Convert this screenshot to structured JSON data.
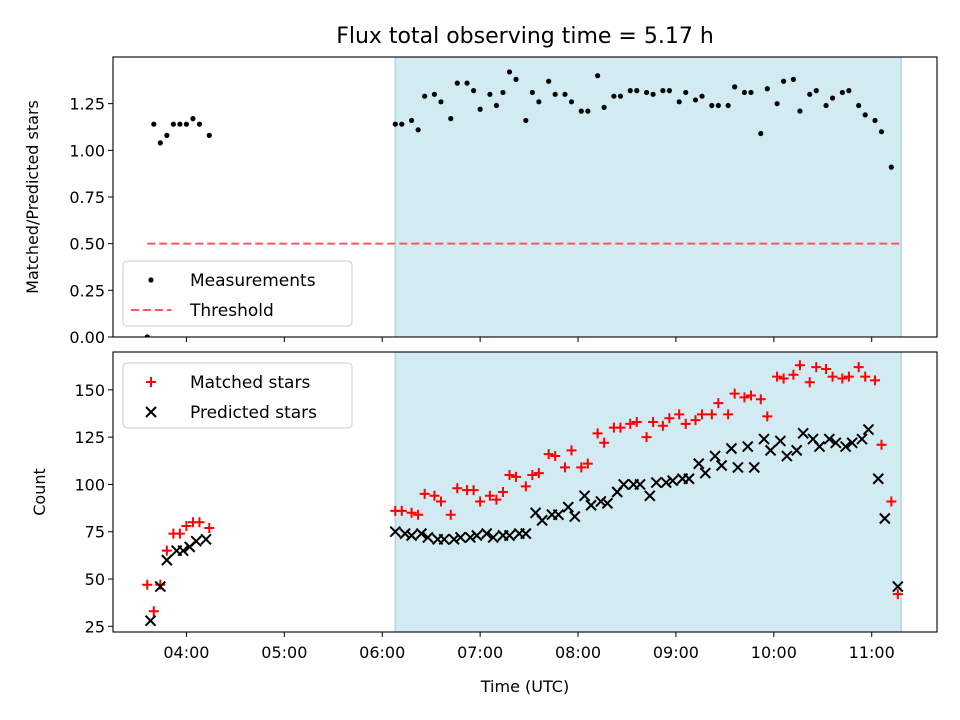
{
  "figure": {
    "title": "Flux total observing time = 5.17 h",
    "xlabel": "Time (UTC)",
    "x_tick_labels": [
      "04:00",
      "05:00",
      "06:00",
      "07:00",
      "08:00",
      "09:00",
      "10:00",
      "11:00"
    ]
  },
  "chart_data": [
    {
      "type": "scatter",
      "panel": "top",
      "ylabel": "Matched/Predicted stars",
      "ylim": [
        0,
        1.5
      ],
      "xlim": [
        "03:15",
        "11:40"
      ],
      "y_tick_labels": [
        "0.00",
        "0.25",
        "0.50",
        "0.75",
        "1.00",
        "1.25"
      ],
      "shaded_interval": {
        "start": "06:08",
        "end": "11:18",
        "color": "#add8e6"
      },
      "threshold": {
        "name": "Threshold",
        "value": 0.5,
        "color": "#ff5555",
        "style": "dashed"
      },
      "legend": {
        "position": "lower-left",
        "entries": [
          "Measurements",
          "Threshold"
        ]
      },
      "series": [
        {
          "name": "Measurements",
          "marker": "dot",
          "color": "#000000",
          "points": [
            [
              "03:36",
              0.0
            ],
            [
              "03:40",
              1.14
            ],
            [
              "03:44",
              1.04
            ],
            [
              "03:48",
              1.08
            ],
            [
              "03:52",
              1.14
            ],
            [
              "03:56",
              1.14
            ],
            [
              "04:00",
              1.14
            ],
            [
              "04:04",
              1.17
            ],
            [
              "04:08",
              1.14
            ],
            [
              "04:14",
              1.08
            ],
            [
              "06:08",
              1.14
            ],
            [
              "06:12",
              1.14
            ],
            [
              "06:18",
              1.16
            ],
            [
              "06:22",
              1.11
            ],
            [
              "06:26",
              1.29
            ],
            [
              "06:32",
              1.3
            ],
            [
              "06:36",
              1.26
            ],
            [
              "06:42",
              1.17
            ],
            [
              "06:46",
              1.36
            ],
            [
              "06:52",
              1.36
            ],
            [
              "06:56",
              1.32
            ],
            [
              "07:00",
              1.22
            ],
            [
              "07:06",
              1.3
            ],
            [
              "07:10",
              1.24
            ],
            [
              "07:14",
              1.31
            ],
            [
              "07:18",
              1.42
            ],
            [
              "07:22",
              1.38
            ],
            [
              "07:28",
              1.16
            ],
            [
              "07:32",
              1.31
            ],
            [
              "07:36",
              1.26
            ],
            [
              "07:42",
              1.37
            ],
            [
              "07:46",
              1.3
            ],
            [
              "07:52",
              1.3
            ],
            [
              "07:56",
              1.26
            ],
            [
              "08:02",
              1.21
            ],
            [
              "08:06",
              1.21
            ],
            [
              "08:12",
              1.4
            ],
            [
              "08:16",
              1.23
            ],
            [
              "08:22",
              1.29
            ],
            [
              "08:26",
              1.29
            ],
            [
              "08:32",
              1.32
            ],
            [
              "08:36",
              1.32
            ],
            [
              "08:42",
              1.31
            ],
            [
              "08:46",
              1.3
            ],
            [
              "08:52",
              1.32
            ],
            [
              "08:56",
              1.32
            ],
            [
              "09:02",
              1.26
            ],
            [
              "09:06",
              1.31
            ],
            [
              "09:12",
              1.27
            ],
            [
              "09:16",
              1.29
            ],
            [
              "09:22",
              1.24
            ],
            [
              "09:26",
              1.24
            ],
            [
              "09:32",
              1.24
            ],
            [
              "09:36",
              1.34
            ],
            [
              "09:42",
              1.31
            ],
            [
              "09:46",
              1.31
            ],
            [
              "09:52",
              1.09
            ],
            [
              "09:56",
              1.33
            ],
            [
              "10:02",
              1.25
            ],
            [
              "10:06",
              1.37
            ],
            [
              "10:12",
              1.38
            ],
            [
              "10:16",
              1.21
            ],
            [
              "10:22",
              1.3
            ],
            [
              "10:26",
              1.32
            ],
            [
              "10:32",
              1.24
            ],
            [
              "10:36",
              1.28
            ],
            [
              "10:42",
              1.31
            ],
            [
              "10:46",
              1.32
            ],
            [
              "10:52",
              1.24
            ],
            [
              "10:56",
              1.19
            ],
            [
              "11:02",
              1.16
            ],
            [
              "11:06",
              1.1
            ],
            [
              "11:12",
              0.91
            ]
          ]
        }
      ]
    },
    {
      "type": "scatter",
      "panel": "bottom",
      "ylabel": "Count",
      "ylim": [
        22,
        170
      ],
      "xlim": [
        "03:15",
        "11:40"
      ],
      "y_tick_labels": [
        "25",
        "50",
        "75",
        "100",
        "125",
        "150"
      ],
      "shaded_interval": {
        "start": "06:08",
        "end": "11:18",
        "color": "#add8e6"
      },
      "legend": {
        "position": "upper-left",
        "entries": [
          "Matched stars",
          "Predicted stars"
        ]
      },
      "series": [
        {
          "name": "Matched stars",
          "marker": "plus",
          "color": "#ff0000",
          "points": [
            [
              "03:36",
              47
            ],
            [
              "03:40",
              33
            ],
            [
              "03:44",
              47
            ],
            [
              "03:48",
              65
            ],
            [
              "03:52",
              74
            ],
            [
              "03:56",
              74
            ],
            [
              "04:00",
              78
            ],
            [
              "04:04",
              80
            ],
            [
              "04:08",
              80
            ],
            [
              "04:14",
              77
            ],
            [
              "06:08",
              86
            ],
            [
              "06:12",
              86
            ],
            [
              "06:18",
              85
            ],
            [
              "06:22",
              84
            ],
            [
              "06:26",
              95
            ],
            [
              "06:32",
              94
            ],
            [
              "06:36",
              91
            ],
            [
              "06:42",
              84
            ],
            [
              "06:46",
              98
            ],
            [
              "06:52",
              97
            ],
            [
              "06:56",
              97
            ],
            [
              "07:00",
              91
            ],
            [
              "07:06",
              94
            ],
            [
              "07:10",
              92
            ],
            [
              "07:14",
              96
            ],
            [
              "07:18",
              105
            ],
            [
              "07:22",
              104
            ],
            [
              "07:28",
              99
            ],
            [
              "07:32",
              105
            ],
            [
              "07:36",
              106
            ],
            [
              "07:42",
              116
            ],
            [
              "07:46",
              115
            ],
            [
              "07:52",
              109
            ],
            [
              "07:56",
              118
            ],
            [
              "08:02",
              109
            ],
            [
              "08:06",
              111
            ],
            [
              "08:12",
              127
            ],
            [
              "08:16",
              122
            ],
            [
              "08:22",
              130
            ],
            [
              "08:26",
              130
            ],
            [
              "08:32",
              132
            ],
            [
              "08:36",
              133
            ],
            [
              "08:42",
              125
            ],
            [
              "08:46",
              133
            ],
            [
              "08:52",
              131
            ],
            [
              "08:56",
              135
            ],
            [
              "09:02",
              137
            ],
            [
              "09:06",
              132
            ],
            [
              "09:12",
              134
            ],
            [
              "09:16",
              137
            ],
            [
              "09:22",
              137
            ],
            [
              "09:26",
              143
            ],
            [
              "09:32",
              137
            ],
            [
              "09:36",
              148
            ],
            [
              "09:42",
              146
            ],
            [
              "09:46",
              147
            ],
            [
              "09:52",
              145
            ],
            [
              "09:56",
              136
            ],
            [
              "10:02",
              157
            ],
            [
              "10:06",
              156
            ],
            [
              "10:12",
              158
            ],
            [
              "10:16",
              163
            ],
            [
              "10:22",
              154
            ],
            [
              "10:26",
              162
            ],
            [
              "10:32",
              161
            ],
            [
              "10:36",
              157
            ],
            [
              "10:42",
              156
            ],
            [
              "10:46",
              157
            ],
            [
              "10:52",
              162
            ],
            [
              "10:56",
              157
            ],
            [
              "11:02",
              155
            ],
            [
              "11:06",
              121
            ],
            [
              "11:12",
              91
            ],
            [
              "11:16",
              42
            ]
          ]
        },
        {
          "name": "Predicted stars",
          "marker": "x",
          "color": "#000000",
          "points": [
            [
              "03:38",
              28
            ],
            [
              "03:44",
              46
            ],
            [
              "03:48",
              60
            ],
            [
              "03:54",
              65
            ],
            [
              "03:58",
              65
            ],
            [
              "04:02",
              67
            ],
            [
              "04:06",
              70
            ],
            [
              "04:12",
              71
            ],
            [
              "06:08",
              75
            ],
            [
              "06:14",
              74
            ],
            [
              "06:18",
              73
            ],
            [
              "06:24",
              74
            ],
            [
              "06:28",
              72
            ],
            [
              "06:34",
              71
            ],
            [
              "06:38",
              71
            ],
            [
              "06:44",
              71
            ],
            [
              "06:48",
              72
            ],
            [
              "06:54",
              72
            ],
            [
              "06:58",
              73
            ],
            [
              "07:04",
              74
            ],
            [
              "07:08",
              72
            ],
            [
              "07:14",
              73
            ],
            [
              "07:18",
              73
            ],
            [
              "07:24",
              74
            ],
            [
              "07:28",
              74
            ],
            [
              "07:34",
              85
            ],
            [
              "07:38",
              81
            ],
            [
              "07:44",
              84
            ],
            [
              "07:48",
              84
            ],
            [
              "07:54",
              88
            ],
            [
              "07:58",
              83
            ],
            [
              "08:04",
              94
            ],
            [
              "08:08",
              89
            ],
            [
              "08:14",
              91
            ],
            [
              "08:18",
              90
            ],
            [
              "08:24",
              96
            ],
            [
              "08:28",
              100
            ],
            [
              "08:34",
              100
            ],
            [
              "08:38",
              100
            ],
            [
              "08:44",
              94
            ],
            [
              "08:48",
              101
            ],
            [
              "08:54",
              101
            ],
            [
              "08:58",
              102
            ],
            [
              "09:04",
              103
            ],
            [
              "09:08",
              103
            ],
            [
              "09:14",
              111
            ],
            [
              "09:18",
              106
            ],
            [
              "09:24",
              115
            ],
            [
              "09:28",
              110
            ],
            [
              "09:34",
              119
            ],
            [
              "09:38",
              109
            ],
            [
              "09:44",
              120
            ],
            [
              "09:48",
              109
            ],
            [
              "09:54",
              124
            ],
            [
              "09:58",
              118
            ],
            [
              "10:04",
              123
            ],
            [
              "10:08",
              115
            ],
            [
              "10:14",
              118
            ],
            [
              "10:18",
              127
            ],
            [
              "10:24",
              124
            ],
            [
              "10:28",
              120
            ],
            [
              "10:34",
              124
            ],
            [
              "10:38",
              122
            ],
            [
              "10:44",
              120
            ],
            [
              "10:48",
              122
            ],
            [
              "10:54",
              124
            ],
            [
              "10:58",
              129
            ],
            [
              "11:04",
              103
            ],
            [
              "11:08",
              82
            ],
            [
              "11:16",
              46
            ]
          ]
        }
      ]
    }
  ]
}
